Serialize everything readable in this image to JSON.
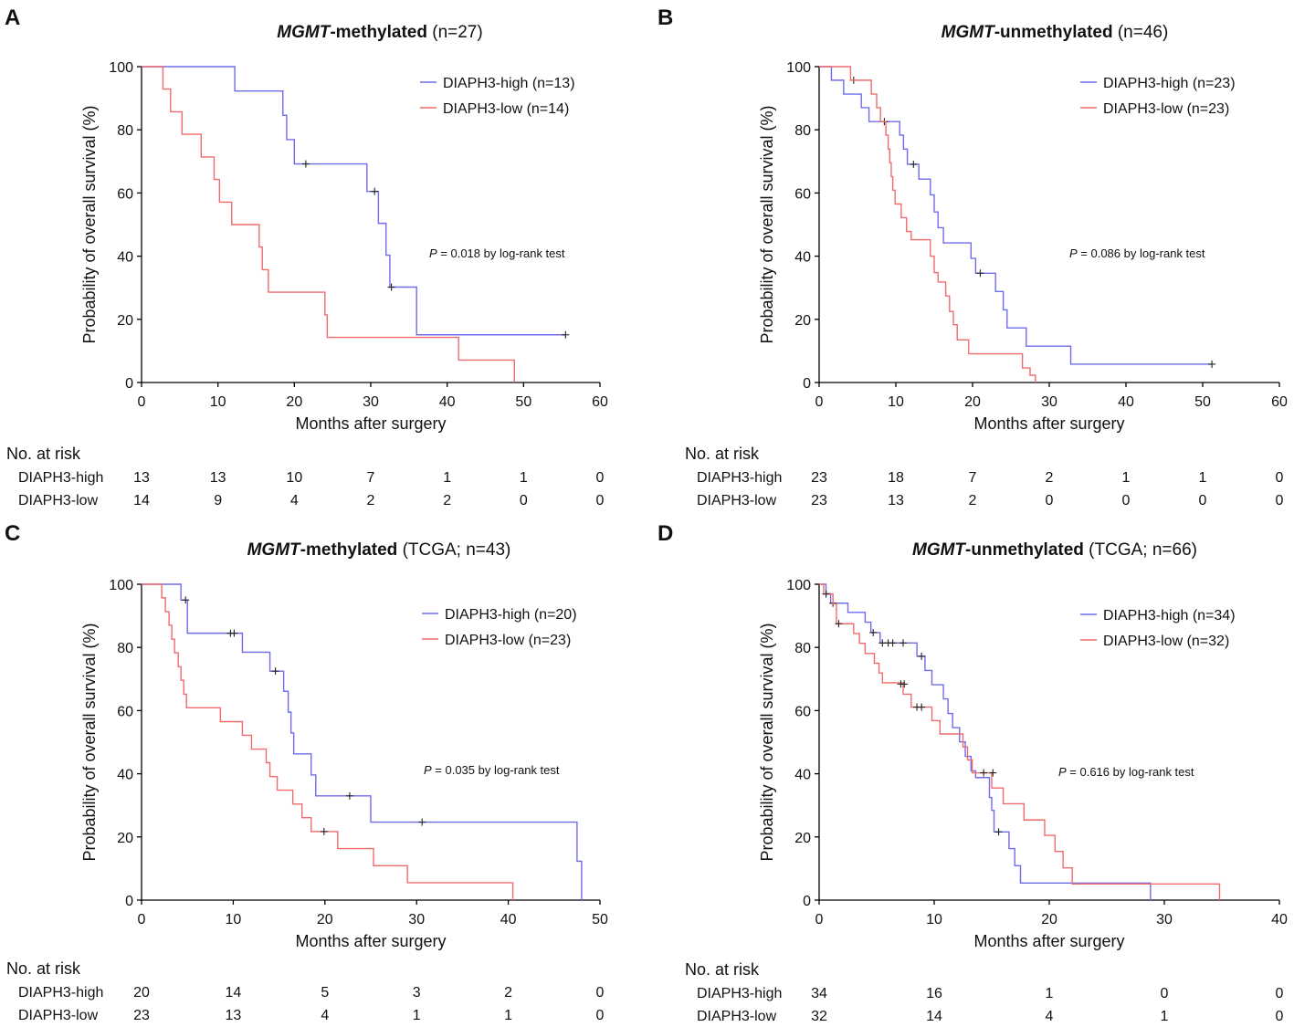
{
  "colors": {
    "high": "#6f6cec",
    "low": "#f06b6b",
    "axis": "#000000"
  },
  "x_axis_label": "Months after surgery",
  "y_axis_label": "Probability of overall survival (%)",
  "risk_header": "No. at risk",
  "chart_data": [
    {
      "panel": "A",
      "type": "line",
      "title_italic": "MGMT",
      "title_bold": "-methylated",
      "title_rest": " (n=27)",
      "xlabel": "Months after surgery",
      "ylabel": "Probability of overall survival (%)",
      "xlim": [
        0,
        60
      ],
      "ylim": [
        0,
        100
      ],
      "x_ticks": [
        "0",
        "10",
        "20",
        "30",
        "40",
        "50",
        "60"
      ],
      "y_ticks": [
        "0",
        "20",
        "40",
        "60",
        "80",
        "100"
      ],
      "pvalue_label": "P",
      "pvalue_text": " = 0.018 by log-rank test",
      "series": [
        {
          "name": "DIAPH3-high (n=13)",
          "group": "high",
          "steps": [
            [
              0,
              100
            ],
            [
              12.2,
              92.3
            ],
            [
              18.5,
              84.6
            ],
            [
              19,
              76.9
            ],
            [
              20,
              69.2
            ],
            [
              29.5,
              60.5
            ],
            [
              31,
              50.4
            ],
            [
              32,
              40.3
            ],
            [
              32.5,
              30.2
            ],
            [
              36,
              15.1
            ],
            [
              55.5,
              15.1
            ]
          ],
          "censors": [
            [
              21.5,
              69.2
            ],
            [
              30.5,
              60.5
            ],
            [
              32.7,
              30.2
            ],
            [
              55.5,
              15.1
            ]
          ]
        },
        {
          "name": "DIAPH3-low (n=14)",
          "group": "low",
          "steps": [
            [
              0,
              100
            ],
            [
              2.8,
              92.9
            ],
            [
              3.8,
              85.7
            ],
            [
              5.3,
              78.6
            ],
            [
              7.8,
              71.4
            ],
            [
              9.5,
              64.3
            ],
            [
              10.2,
              57.1
            ],
            [
              11.8,
              50
            ],
            [
              15.4,
              42.9
            ],
            [
              15.8,
              35.7
            ],
            [
              16.6,
              28.6
            ],
            [
              24,
              21.4
            ],
            [
              24.3,
              14.3
            ],
            [
              41.5,
              7.1
            ],
            [
              48.8,
              0
            ]
          ],
          "censors": []
        }
      ],
      "risk_table": {
        "x": [
          0,
          10,
          20,
          30,
          40,
          50,
          60
        ],
        "rows": [
          {
            "label": "DIAPH3-high",
            "values": [
              "13",
              "13",
              "10",
              "7",
              "1",
              "1",
              "0"
            ]
          },
          {
            "label": "DIAPH3-low",
            "values": [
              "14",
              "9",
              "4",
              "2",
              "2",
              "0",
              "0"
            ]
          }
        ]
      }
    },
    {
      "panel": "B",
      "type": "line",
      "title_italic": "MGMT",
      "title_bold": "-unmethylated",
      "title_rest": " (n=46)",
      "xlabel": "Months after surgery",
      "ylabel": "Probability of overall survival (%)",
      "xlim": [
        0,
        60
      ],
      "ylim": [
        0,
        100
      ],
      "x_ticks": [
        "0",
        "10",
        "20",
        "30",
        "40",
        "50",
        "60"
      ],
      "y_ticks": [
        "0",
        "20",
        "40",
        "60",
        "80",
        "100"
      ],
      "pvalue_label": "P",
      "pvalue_text": " = 0.086 by log-rank test",
      "series": [
        {
          "name": "DIAPH3-high (n=23)",
          "group": "high",
          "steps": [
            [
              0,
              100
            ],
            [
              1.6,
              95.7
            ],
            [
              3.2,
              91.3
            ],
            [
              5.5,
              87
            ],
            [
              6.5,
              82.6
            ],
            [
              10.5,
              78.3
            ],
            [
              11,
              73.9
            ],
            [
              11.5,
              69.1
            ],
            [
              13,
              64.4
            ],
            [
              14.5,
              59.4
            ],
            [
              15,
              54
            ],
            [
              15.5,
              49
            ],
            [
              16.2,
              44.2
            ],
            [
              19.8,
              39.3
            ],
            [
              20.4,
              34.6
            ],
            [
              23,
              28.8
            ],
            [
              24,
              23
            ],
            [
              24.5,
              17.3
            ],
            [
              27,
              11.5
            ],
            [
              32.8,
              5.8
            ],
            [
              51.2,
              5.8
            ]
          ],
          "censors": [
            [
              4.5,
              95.7
            ],
            [
              8.5,
              82.6
            ],
            [
              12.3,
              69.1
            ],
            [
              21,
              34.6
            ],
            [
              51.2,
              5.8
            ]
          ]
        },
        {
          "name": "DIAPH3-low (n=23)",
          "group": "low",
          "steps": [
            [
              0,
              100
            ],
            [
              4.1,
              95.7
            ],
            [
              6.8,
              91.3
            ],
            [
              7.5,
              87
            ],
            [
              8,
              82.6
            ],
            [
              8.7,
              78.3
            ],
            [
              9,
              73.9
            ],
            [
              9.2,
              69.6
            ],
            [
              9.4,
              65.2
            ],
            [
              9.6,
              60.9
            ],
            [
              9.9,
              56.5
            ],
            [
              10.7,
              52.2
            ],
            [
              11.4,
              47.8
            ],
            [
              12,
              45.2
            ],
            [
              14.5,
              40
            ],
            [
              15,
              34.8
            ],
            [
              15.5,
              31.8
            ],
            [
              16.5,
              27.4
            ],
            [
              17,
              22.5
            ],
            [
              17.5,
              18.3
            ],
            [
              18,
              13.5
            ],
            [
              19.5,
              9.1
            ],
            [
              26.5,
              4.6
            ],
            [
              27.5,
              2.3
            ],
            [
              28.2,
              0
            ]
          ],
          "censors": []
        }
      ],
      "risk_table": {
        "x": [
          0,
          10,
          20,
          30,
          40,
          50,
          60
        ],
        "rows": [
          {
            "label": "DIAPH3-high",
            "values": [
              "23",
              "18",
              "7",
              "2",
              "1",
              "1",
              "0"
            ]
          },
          {
            "label": "DIAPH3-low",
            "values": [
              "23",
              "13",
              "2",
              "0",
              "0",
              "0",
              "0"
            ]
          }
        ]
      }
    },
    {
      "panel": "C",
      "type": "line",
      "title_italic": "MGMT",
      "title_bold": "-methylated",
      "title_rest": " (TCGA; n=43)",
      "xlabel": "Months after surgery",
      "ylabel": "Probability of overall survival (%)",
      "xlim": [
        0,
        50
      ],
      "ylim": [
        0,
        100
      ],
      "x_ticks": [
        "0",
        "10",
        "20",
        "30",
        "40",
        "50"
      ],
      "y_ticks": [
        "0",
        "20",
        "40",
        "60",
        "80",
        "100"
      ],
      "pvalue_label": "P",
      "pvalue_text": " = 0.035 by log-rank test",
      "series": [
        {
          "name": "DIAPH3-high (n=20)",
          "group": "high",
          "steps": [
            [
              0,
              100
            ],
            [
              4.3,
              95
            ],
            [
              5,
              84.5
            ],
            [
              11,
              78.5
            ],
            [
              14,
              72.5
            ],
            [
              15.5,
              66.1
            ],
            [
              16,
              59.5
            ],
            [
              16.3,
              52.9
            ],
            [
              16.6,
              46.3
            ],
            [
              18.5,
              39.6
            ],
            [
              19,
              33
            ],
            [
              25,
              24.7
            ],
            [
              47.5,
              12.3
            ],
            [
              48,
              0
            ]
          ],
          "censors": [
            [
              4.8,
              95
            ],
            [
              9.7,
              84.5
            ],
            [
              10.1,
              84.5
            ],
            [
              14.6,
              72.5
            ],
            [
              22.7,
              33
            ],
            [
              30.6,
              24.7
            ]
          ]
        },
        {
          "name": "DIAPH3-low (n=23)",
          "group": "low",
          "steps": [
            [
              0,
              100
            ],
            [
              2.2,
              95.7
            ],
            [
              2.6,
              91.3
            ],
            [
              3,
              87
            ],
            [
              3.3,
              82.6
            ],
            [
              3.6,
              78.3
            ],
            [
              4,
              73.9
            ],
            [
              4.3,
              69.6
            ],
            [
              4.6,
              65.2
            ],
            [
              4.9,
              60.9
            ],
            [
              8.6,
              56.5
            ],
            [
              11,
              52.2
            ],
            [
              12,
              47.8
            ],
            [
              13.6,
              43.5
            ],
            [
              14,
              39.1
            ],
            [
              14.8,
              34.8
            ],
            [
              16.5,
              30.4
            ],
            [
              17.5,
              26.1
            ],
            [
              18.5,
              21.7
            ],
            [
              21.4,
              16.3
            ],
            [
              25.3,
              10.9
            ],
            [
              29,
              5.5
            ],
            [
              40.5,
              0
            ]
          ],
          "censors": [
            [
              19.9,
              21.7
            ]
          ]
        }
      ],
      "risk_table": {
        "x": [
          0,
          10,
          20,
          30,
          40,
          50
        ],
        "rows": [
          {
            "label": "DIAPH3-high",
            "values": [
              "20",
              "14",
              "5",
              "3",
              "2",
              "0"
            ]
          },
          {
            "label": "DIAPH3-low",
            "values": [
              "23",
              "13",
              "4",
              "1",
              "1",
              "0"
            ]
          }
        ]
      }
    },
    {
      "panel": "D",
      "type": "line",
      "title_italic": "MGMT",
      "title_bold": "-unmethylated",
      "title_rest": " (TCGA; n=66)",
      "xlabel": "Months after surgery",
      "ylabel": "Probability of overall survival (%)",
      "xlim": [
        0,
        40
      ],
      "ylim": [
        0,
        100
      ],
      "x_ticks": [
        "0",
        "10",
        "20",
        "30",
        "40"
      ],
      "y_ticks": [
        "0",
        "20",
        "40",
        "60",
        "80",
        "100"
      ],
      "pvalue_label": "P",
      "pvalue_text": " = 0.616 by log-rank test",
      "series": [
        {
          "name": "DIAPH3-high (n=34)",
          "group": "high",
          "steps": [
            [
              0,
              100
            ],
            [
              0.6,
              97
            ],
            [
              1,
              94
            ],
            [
              2.5,
              91.1
            ],
            [
              4,
              88
            ],
            [
              4.5,
              84.7
            ],
            [
              5.3,
              81.4
            ],
            [
              8.5,
              77.2
            ],
            [
              9.2,
              72.7
            ],
            [
              9.8,
              68.2
            ],
            [
              10.8,
              63.7
            ],
            [
              11.2,
              59.1
            ],
            [
              11.6,
              54.6
            ],
            [
              12.2,
              50.1
            ],
            [
              12.7,
              45.5
            ],
            [
              13.2,
              40.9
            ],
            [
              13.6,
              38.8
            ],
            [
              14.8,
              32.5
            ],
            [
              15,
              28.4
            ],
            [
              15.2,
              21.6
            ],
            [
              16.5,
              16.3
            ],
            [
              17,
              10.9
            ],
            [
              17.5,
              5.4
            ],
            [
              28.8,
              0
            ]
          ],
          "censors": [
            [
              1.2,
              94
            ],
            [
              4.7,
              84.7
            ],
            [
              5.5,
              81.4
            ],
            [
              6,
              81.4
            ],
            [
              6.4,
              81.4
            ],
            [
              7.3,
              81.4
            ],
            [
              8.9,
              77.2
            ],
            [
              15.6,
              21.6
            ]
          ]
        },
        {
          "name": "DIAPH3-low (n=32)",
          "group": "low",
          "steps": [
            [
              0,
              100
            ],
            [
              0.4,
              96.9
            ],
            [
              1.2,
              93.8
            ],
            [
              1.5,
              87.5
            ],
            [
              3,
              84.4
            ],
            [
              3.5,
              81.3
            ],
            [
              4,
              78.1
            ],
            [
              4.8,
              75
            ],
            [
              5.2,
              71.9
            ],
            [
              5.5,
              68.8
            ],
            [
              7.3,
              65.2
            ],
            [
              8,
              61.1
            ],
            [
              9.8,
              56.8
            ],
            [
              10.5,
              52.6
            ],
            [
              12.5,
              48.5
            ],
            [
              12.9,
              44.4
            ],
            [
              13.3,
              40.3
            ],
            [
              15,
              35.5
            ],
            [
              16,
              30.5
            ],
            [
              17.8,
              25.4
            ],
            [
              19.6,
              20.5
            ],
            [
              20.5,
              15.4
            ],
            [
              21.2,
              10.2
            ],
            [
              22,
              5.1
            ],
            [
              34.8,
              0
            ]
          ],
          "censors": [
            [
              0.6,
              96.9
            ],
            [
              1.7,
              87.5
            ],
            [
              7.1,
              68.4
            ],
            [
              7.4,
              68.4
            ],
            [
              8.5,
              61.1
            ],
            [
              8.9,
              61.1
            ],
            [
              14.3,
              40.3
            ],
            [
              15.1,
              40.3
            ]
          ]
        }
      ],
      "risk_table": {
        "x": [
          0,
          10,
          20,
          30,
          40
        ],
        "rows": [
          {
            "label": "DIAPH3-high",
            "values": [
              "34",
              "16",
              "1",
              "0",
              "0"
            ]
          },
          {
            "label": "DIAPH3-low",
            "values": [
              "32",
              "14",
              "4",
              "1",
              "0"
            ]
          }
        ]
      }
    }
  ]
}
